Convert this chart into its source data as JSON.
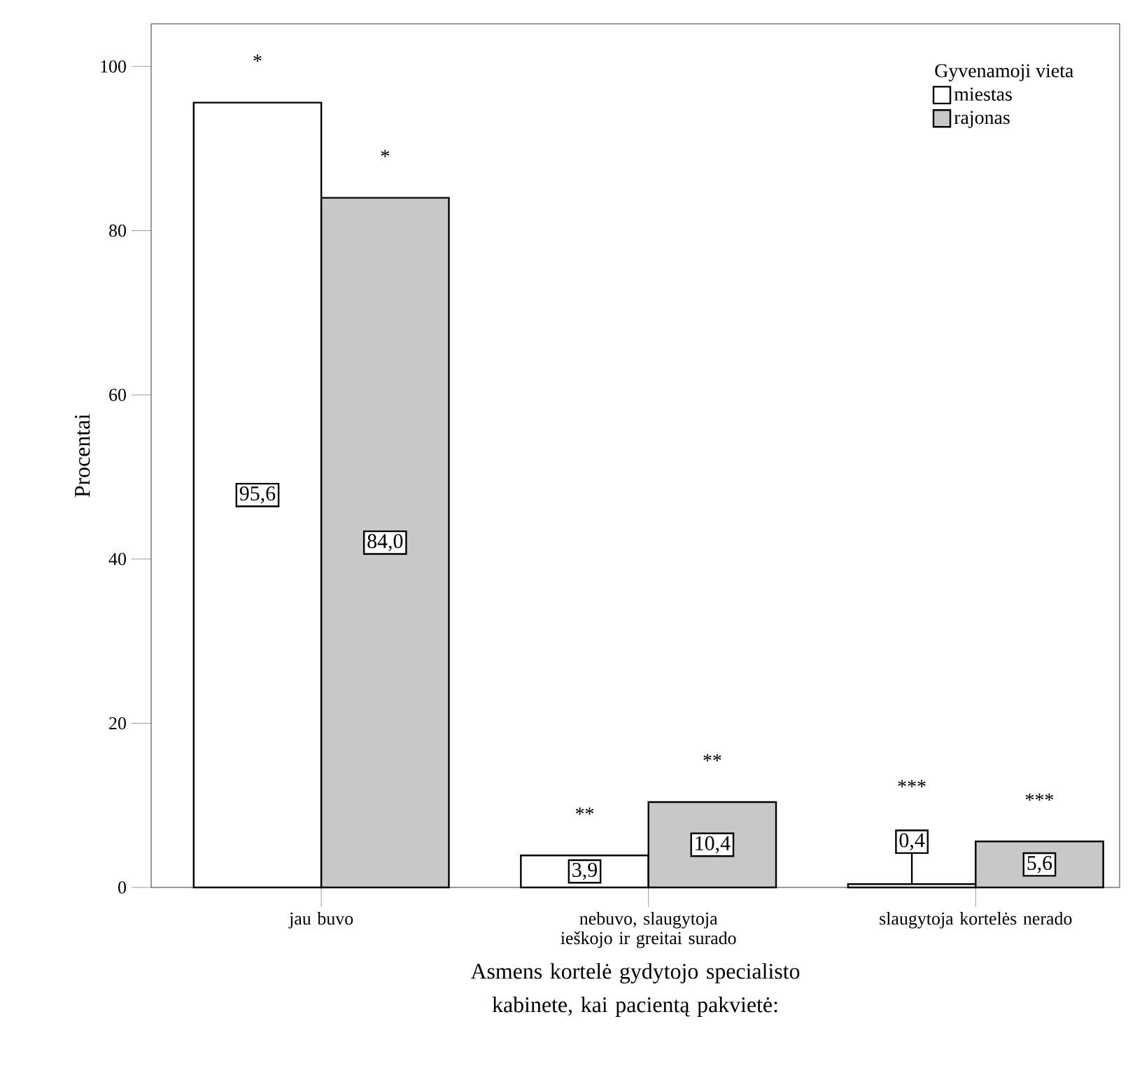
{
  "chart_data": {
    "type": "bar",
    "xlabel": "Asmens kortelė gydytojo specialisto kabinete, kai pacientą pakvietė:",
    "ylabel": "Procentai",
    "legend_title": "Gyvenamoji vieta",
    "categories": [
      "jau buvo",
      "nebuvo, slaugytoja ieškojo ir greitai surado",
      "slaugytoja kortelės nerado"
    ],
    "series": [
      {
        "name": "miestas",
        "color": "#ffffff",
        "values": [
          95.6,
          3.9,
          0.4
        ],
        "value_labels": [
          "95,6",
          "3,9",
          "0,4"
        ]
      },
      {
        "name": "rajonas",
        "color": "#c8c8c8",
        "values": [
          84.0,
          10.4,
          5.6
        ],
        "value_labels": [
          "84,0",
          "10,4",
          "5,6"
        ]
      }
    ],
    "annotations": [
      "*",
      "*",
      "**",
      "**",
      "***",
      "***"
    ],
    "ylim": [
      0,
      105.2
    ],
    "yticks": [
      0,
      20,
      40,
      60,
      80,
      100
    ],
    "legend": "top right"
  }
}
